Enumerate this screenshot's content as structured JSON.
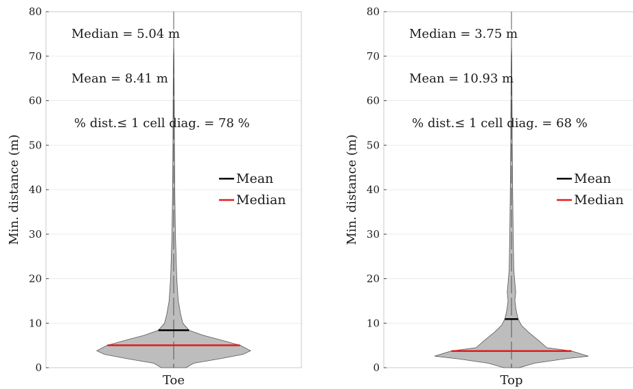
{
  "chart_data": [
    {
      "type": "violin",
      "category": "Toe",
      "ylabel": "Min. distance (m)",
      "ylim": [
        0,
        80
      ],
      "yticks": [
        0,
        10,
        20,
        30,
        40,
        50,
        60,
        70,
        80
      ],
      "grid": true,
      "legend": {
        "placement": "right",
        "entries": [
          {
            "name": "Mean",
            "color": "#000000"
          },
          {
            "name": "Median",
            "color": "#e31a1c"
          }
        ]
      },
      "mean": 8.41,
      "median": 5.04,
      "annotations": [
        "Median = 5.04 m",
        "Mean = 8.41 m",
        "% dist.≤ 1 cell diag. = 78 %"
      ],
      "density_profile": [
        [
          0,
          0.16
        ],
        [
          1.0,
          0.26
        ],
        [
          2.0,
          0.6
        ],
        [
          3.0,
          0.9
        ],
        [
          3.8,
          1.0
        ],
        [
          5.0,
          0.87
        ],
        [
          6.2,
          0.62
        ],
        [
          7.3,
          0.38
        ],
        [
          8.4,
          0.2
        ],
        [
          10.0,
          0.12
        ],
        [
          12.0,
          0.09
        ],
        [
          15.0,
          0.06
        ],
        [
          20.0,
          0.04
        ],
        [
          30.0,
          0.022
        ],
        [
          40.0,
          0.014
        ],
        [
          50.0,
          0.01
        ],
        [
          60.0,
          0.007
        ],
        [
          70.0,
          0.004
        ],
        [
          73.0,
          0.0
        ]
      ]
    },
    {
      "type": "violin",
      "category": "Top",
      "ylabel": "Min. distance (m)",
      "ylim": [
        0,
        80
      ],
      "yticks": [
        0,
        10,
        20,
        30,
        40,
        50,
        60,
        70,
        80
      ],
      "grid": true,
      "legend": {
        "placement": "right",
        "entries": [
          {
            "name": "Mean",
            "color": "#000000"
          },
          {
            "name": "Median",
            "color": "#e31a1c"
          }
        ]
      },
      "mean": 10.93,
      "median": 3.75,
      "annotations": [
        "Median = 3.75 m",
        "Mean = 10.93 m",
        "% dist.≤ 1 cell diag. = 68 %"
      ],
      "density_profile": [
        [
          0,
          0.1
        ],
        [
          1.0,
          0.3
        ],
        [
          2.0,
          0.7
        ],
        [
          2.6,
          1.0
        ],
        [
          3.75,
          0.78
        ],
        [
          4.5,
          0.46
        ],
        [
          6.0,
          0.36
        ],
        [
          8.0,
          0.22
        ],
        [
          9.5,
          0.13
        ],
        [
          11.0,
          0.085
        ],
        [
          13.0,
          0.06
        ],
        [
          15.0,
          0.045
        ],
        [
          17.0,
          0.055
        ],
        [
          19.0,
          0.045
        ],
        [
          22.0,
          0.03
        ],
        [
          30.0,
          0.022
        ],
        [
          40.0,
          0.015
        ],
        [
          50.0,
          0.01
        ],
        [
          60.0,
          0.007
        ],
        [
          70.0,
          0.004
        ],
        [
          73.0,
          0.0
        ]
      ]
    }
  ]
}
